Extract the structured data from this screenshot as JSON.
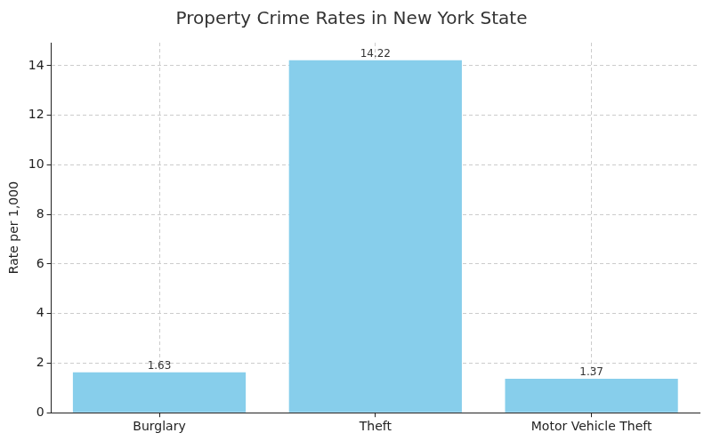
{
  "chart_data": {
    "type": "bar",
    "title": "Property Crime Rates in New York State",
    "y_label": "Rate per 1,000",
    "categories": [
      "Burglary",
      "Theft",
      "Motor Vehicle Theft"
    ],
    "values": [
      1.63,
      14.22,
      1.37
    ],
    "color": "#87ceeb",
    "ylim": [
      0,
      14.93
    ],
    "yticks": [
      0,
      2,
      4,
      6,
      8,
      10,
      12,
      14
    ],
    "grid": true,
    "data_labels": true
  }
}
